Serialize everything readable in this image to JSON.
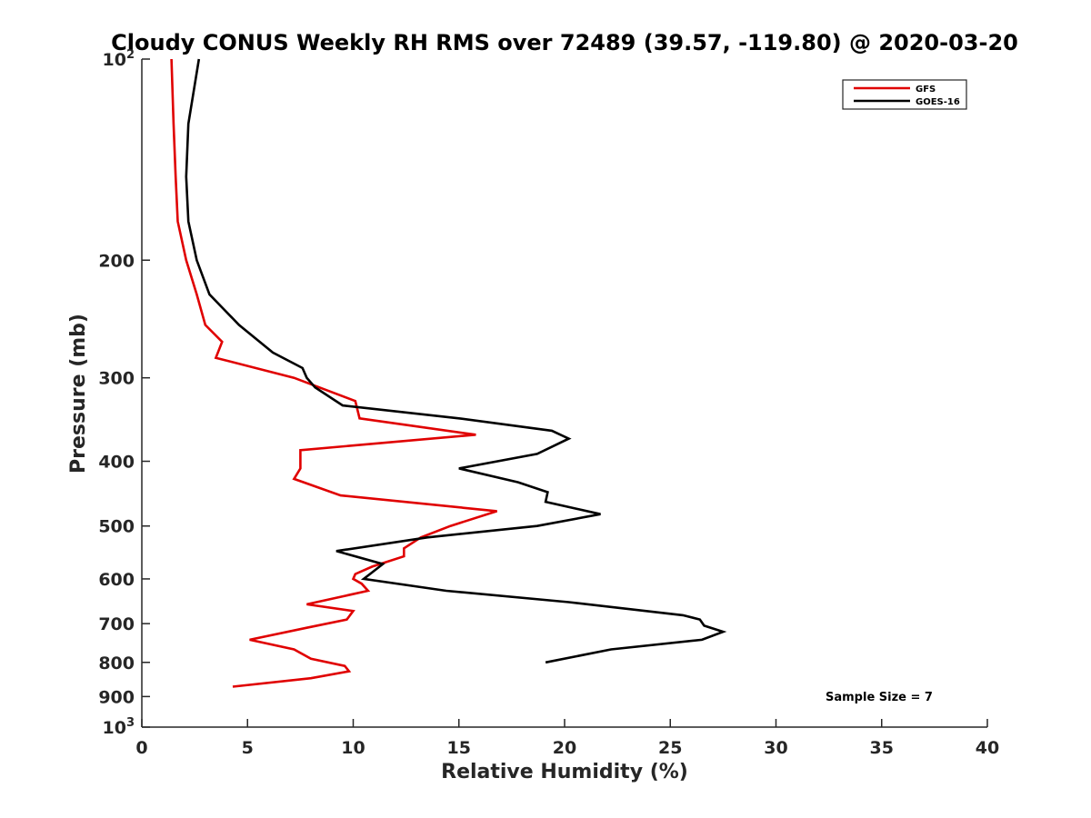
{
  "chart_data": {
    "type": "line",
    "title": "Cloudy CONUS Weekly RH RMS over 72489 (39.57, -119.80) @ 2020-03-20",
    "xlabel": "Relative Humidity (%)",
    "ylabel": "Pressure (mb)",
    "xlim": [
      0,
      40
    ],
    "ylim": [
      100,
      1000
    ],
    "yscale": "log",
    "y_reversed": true,
    "grid": false,
    "x_ticks": [
      "0",
      "5",
      "10",
      "15",
      "20",
      "25",
      "30",
      "35",
      "40"
    ],
    "y_ticks": [
      {
        "value": 100,
        "label": "10",
        "sup": "2"
      },
      {
        "value": 200,
        "label": "200",
        "sup": ""
      },
      {
        "value": 300,
        "label": "300",
        "sup": ""
      },
      {
        "value": 400,
        "label": "400",
        "sup": ""
      },
      {
        "value": 500,
        "label": "500",
        "sup": ""
      },
      {
        "value": 600,
        "label": "600",
        "sup": ""
      },
      {
        "value": 700,
        "label": "700",
        "sup": ""
      },
      {
        "value": 800,
        "label": "800",
        "sup": ""
      },
      {
        "value": 900,
        "label": "900",
        "sup": ""
      },
      {
        "value": 1000,
        "label": "10",
        "sup": "3"
      }
    ],
    "legend_position": "top-right",
    "annotation": "Sample Size = 7",
    "series": [
      {
        "name": "GFS",
        "color": "#e00000",
        "points": [
          [
            1.4,
            100
          ],
          [
            1.5,
            125
          ],
          [
            1.6,
            150
          ],
          [
            1.7,
            175
          ],
          [
            2.1,
            200
          ],
          [
            2.6,
            225
          ],
          [
            3.0,
            250
          ],
          [
            3.8,
            265
          ],
          [
            3.5,
            280
          ],
          [
            7.2,
            300
          ],
          [
            10.1,
            325
          ],
          [
            10.3,
            345
          ],
          [
            15.8,
            365
          ],
          [
            7.5,
            385
          ],
          [
            7.5,
            410
          ],
          [
            7.2,
            425
          ],
          [
            9.4,
            450
          ],
          [
            16.8,
            475
          ],
          [
            14.6,
            500
          ],
          [
            13.2,
            520
          ],
          [
            12.4,
            540
          ],
          [
            12.4,
            555
          ],
          [
            10.9,
            575
          ],
          [
            10.1,
            590
          ],
          [
            10.0,
            600
          ],
          [
            10.4,
            610
          ],
          [
            10.7,
            625
          ],
          [
            7.8,
            655
          ],
          [
            10.0,
            670
          ],
          [
            9.7,
            690
          ],
          [
            7.8,
            710
          ],
          [
            5.1,
            740
          ],
          [
            7.2,
            765
          ],
          [
            8.0,
            790
          ],
          [
            9.6,
            810
          ],
          [
            9.8,
            825
          ],
          [
            8.0,
            845
          ],
          [
            4.3,
            870
          ]
        ]
      },
      {
        "name": "GOES-16",
        "color": "#000000",
        "points": [
          [
            2.7,
            100
          ],
          [
            2.2,
            125
          ],
          [
            2.1,
            150
          ],
          [
            2.2,
            175
          ],
          [
            2.6,
            200
          ],
          [
            3.2,
            225
          ],
          [
            4.6,
            250
          ],
          [
            6.2,
            275
          ],
          [
            7.6,
            290
          ],
          [
            7.8,
            300
          ],
          [
            8.2,
            310
          ],
          [
            9.5,
            330
          ],
          [
            15.0,
            345
          ],
          [
            19.4,
            360
          ],
          [
            20.2,
            370
          ],
          [
            18.7,
            390
          ],
          [
            15.0,
            410
          ],
          [
            17.8,
            430
          ],
          [
            19.2,
            445
          ],
          [
            19.1,
            460
          ],
          [
            21.7,
            480
          ],
          [
            18.7,
            500
          ],
          [
            13.5,
            520
          ],
          [
            9.2,
            545
          ],
          [
            11.4,
            570
          ],
          [
            10.5,
            600
          ],
          [
            14.4,
            625
          ],
          [
            20.2,
            650
          ],
          [
            25.6,
            680
          ],
          [
            26.4,
            690
          ],
          [
            26.6,
            705
          ],
          [
            27.5,
            720
          ],
          [
            26.5,
            740
          ],
          [
            22.2,
            765
          ],
          [
            19.1,
            800
          ]
        ]
      }
    ]
  }
}
